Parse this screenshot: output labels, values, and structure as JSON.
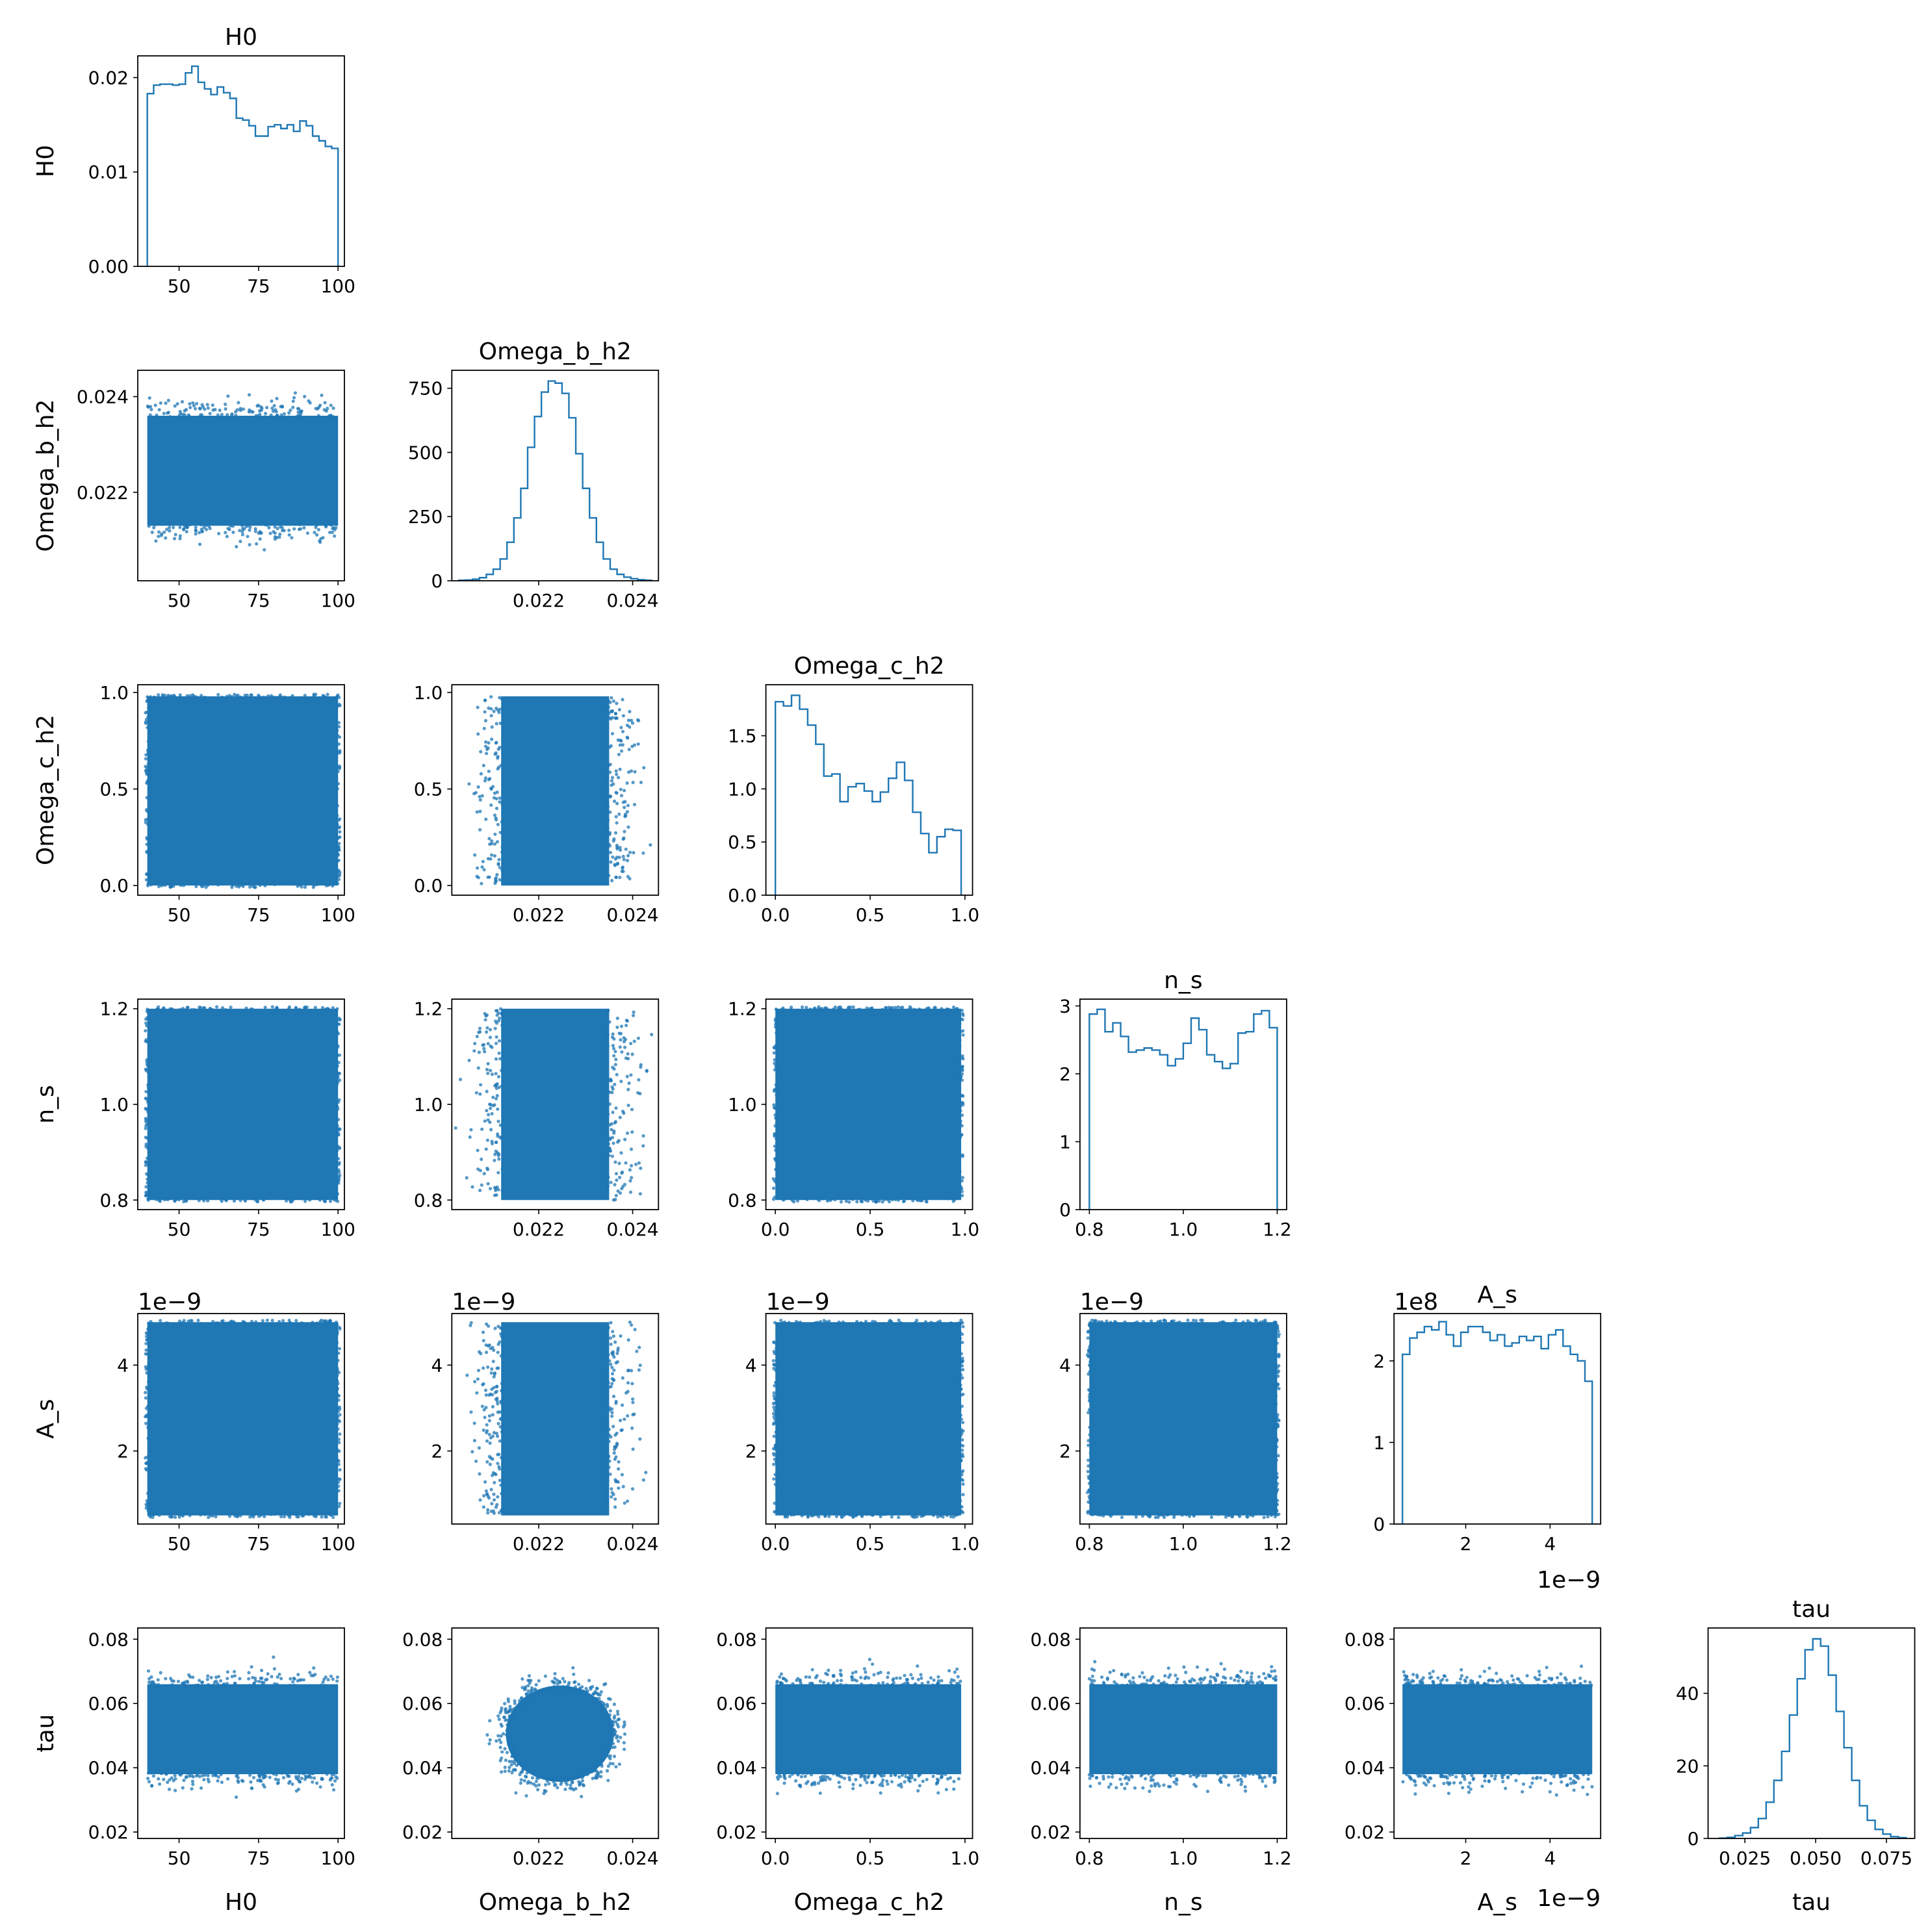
{
  "chart_data": {
    "type": "corner",
    "params": [
      "H0",
      "Omega_b_h2",
      "Omega_c_h2",
      "n_s",
      "A_s",
      "tau"
    ],
    "axes": {
      "H0": {
        "lim": [
          37,
          102
        ],
        "ticks": [
          50,
          75,
          100
        ],
        "labels": [
          "50",
          "75",
          "100"
        ],
        "offset": ""
      },
      "Omega_b_h2": {
        "lim": [
          0.02015,
          0.02455
        ],
        "ticks": [
          0.022,
          0.024
        ],
        "labels": [
          "0.022",
          "0.024"
        ],
        "offset": ""
      },
      "Omega_c_h2": {
        "lim": [
          -0.05,
          1.04
        ],
        "ticks": [
          0.0,
          0.5,
          1.0
        ],
        "labels": [
          "0.0",
          "0.5",
          "1.0"
        ],
        "offset": ""
      },
      "n_s": {
        "lim": [
          0.78,
          1.22
        ],
        "ticks": [
          0.8,
          1.0,
          1.2
        ],
        "labels": [
          "0.8",
          "1.0",
          "1.2"
        ],
        "offset": ""
      },
      "A_s": {
        "lim": [
          0.3,
          5.2
        ],
        "ticks": [
          2,
          4
        ],
        "labels": [
          "2",
          "4"
        ],
        "offset": "1e−9"
      },
      "tau": {
        "lim": [
          0.018,
          0.0835
        ],
        "ticks": [
          0.02,
          0.04,
          0.06,
          0.08
        ],
        "labels": [
          "0.02",
          "0.04",
          "0.06",
          "0.08"
        ],
        "offset": ""
      }
    },
    "tau_hist_axis": {
      "lim": [
        0.012,
        0.085
      ],
      "ticks": [
        0.025,
        0.05,
        0.075
      ],
      "labels": [
        "0.025",
        "0.050",
        "0.075"
      ]
    },
    "histograms": [
      {
        "param": "H0",
        "title": "H0",
        "ylim": [
          0,
          0.0223
        ],
        "yticks": [
          0.0,
          0.01,
          0.02
        ],
        "ylabels": [
          "0.00",
          "0.01",
          "0.02"
        ],
        "offset": "",
        "edges": [
          40,
          100
        ],
        "values": [
          0.0183,
          0.0192,
          0.0193,
          0.0193,
          0.0192,
          0.0193,
          0.0205,
          0.0212,
          0.0195,
          0.0188,
          0.0182,
          0.019,
          0.0184,
          0.0178,
          0.0157,
          0.0155,
          0.0149,
          0.0138,
          0.0138,
          0.0148,
          0.015,
          0.0146,
          0.015,
          0.0143,
          0.0154,
          0.0149,
          0.0138,
          0.0133,
          0.0127,
          0.0125
        ]
      },
      {
        "param": "Omega_b_h2",
        "title": "Omega_b_h2",
        "ylim": [
          0,
          820
        ],
        "yticks": [
          0,
          250,
          500,
          750
        ],
        "ylabels": [
          "0",
          "250",
          "500",
          "750"
        ],
        "offset": "",
        "edges": [
          0.0203,
          0.0244
        ],
        "values": [
          2,
          3,
          6,
          12,
          25,
          45,
          85,
          150,
          245,
          360,
          520,
          640,
          735,
          778,
          770,
          730,
          635,
          495,
          360,
          245,
          150,
          85,
          45,
          25,
          14,
          8,
          4,
          2
        ]
      },
      {
        "param": "Omega_c_h2",
        "title": "Omega_c_h2",
        "ylim": [
          0,
          1.98
        ],
        "yticks": [
          0.0,
          0.5,
          1.0,
          1.5
        ],
        "ylabels": [
          "0.0",
          "0.5",
          "1.0",
          "1.5"
        ],
        "offset": "",
        "edges": [
          0.0,
          0.98
        ],
        "values": [
          1.82,
          1.78,
          1.88,
          1.75,
          1.6,
          1.42,
          1.12,
          1.14,
          0.88,
          1.02,
          1.05,
          0.98,
          0.88,
          0.97,
          1.1,
          1.25,
          1.08,
          0.78,
          0.58,
          0.4,
          0.55,
          0.62,
          0.61
        ]
      },
      {
        "param": "n_s",
        "title": "n_s",
        "ylim": [
          0,
          3.1
        ],
        "yticks": [
          0,
          1,
          2,
          3
        ],
        "ylabels": [
          "0",
          "1",
          "2",
          "3"
        ],
        "offset": "",
        "edges": [
          0.8,
          1.2
        ],
        "values": [
          2.88,
          2.95,
          2.62,
          2.75,
          2.55,
          2.32,
          2.35,
          2.38,
          2.35,
          2.28,
          2.12,
          2.22,
          2.45,
          2.82,
          2.65,
          2.28,
          2.18,
          2.08,
          2.15,
          2.6,
          2.62,
          2.88,
          2.93,
          2.68
        ]
      },
      {
        "param": "A_s",
        "title": "A_s",
        "ylim": [
          0,
          2.58
        ],
        "yticks": [
          0,
          1,
          2
        ],
        "ylabels": [
          "0",
          "1",
          "2"
        ],
        "offset": "1e8",
        "edges": [
          0.5,
          5.0
        ],
        "values": [
          2.08,
          2.28,
          2.35,
          2.42,
          2.38,
          2.48,
          2.32,
          2.18,
          2.35,
          2.42,
          2.42,
          2.35,
          2.25,
          2.32,
          2.18,
          2.22,
          2.3,
          2.25,
          2.3,
          2.15,
          2.32,
          2.38,
          2.18,
          2.08,
          2.0,
          1.75
        ]
      },
      {
        "param": "tau",
        "title": "tau",
        "ylim": [
          0,
          58
        ],
        "yticks": [
          0,
          20,
          40
        ],
        "ylabels": [
          "0",
          "20",
          "40"
        ],
        "offset": "",
        "edges": [
          0.016,
          0.082
        ],
        "values": [
          0.1,
          0.3,
          0.8,
          1.5,
          3,
          5.5,
          10,
          16,
          24,
          34,
          44,
          52,
          55,
          53,
          45,
          35,
          25,
          16,
          9,
          5,
          2.5,
          1.2,
          0.5,
          0.2
        ]
      }
    ],
    "scatter_panels": [
      {
        "x": "H0",
        "y": "Omega_b_h2",
        "shape": "box",
        "bulk": [
          40,
          100,
          0.0213,
          0.0236
        ],
        "tails": "y"
      },
      {
        "x": "H0",
        "y": "Omega_c_h2",
        "shape": "box",
        "bulk": [
          40,
          100,
          0.0,
          0.98
        ],
        "tails": "none"
      },
      {
        "x": "Omega_b_h2",
        "y": "Omega_c_h2",
        "shape": "box",
        "bulk": [
          0.0212,
          0.0235,
          0.0,
          0.98
        ],
        "tails": "x"
      },
      {
        "x": "H0",
        "y": "n_s",
        "shape": "box",
        "bulk": [
          40,
          100,
          0.8,
          1.2
        ],
        "tails": "none"
      },
      {
        "x": "Omega_b_h2",
        "y": "n_s",
        "shape": "box",
        "bulk": [
          0.0212,
          0.0235,
          0.8,
          1.2
        ],
        "tails": "x"
      },
      {
        "x": "Omega_c_h2",
        "y": "n_s",
        "shape": "box",
        "bulk": [
          0.0,
          0.98,
          0.8,
          1.2
        ],
        "tails": "none"
      },
      {
        "x": "H0",
        "y": "A_s",
        "shape": "box",
        "bulk": [
          40,
          100,
          0.5,
          5.0
        ],
        "tails": "none"
      },
      {
        "x": "Omega_b_h2",
        "y": "A_s",
        "shape": "box",
        "bulk": [
          0.0212,
          0.0235,
          0.5,
          5.0
        ],
        "tails": "x"
      },
      {
        "x": "Omega_c_h2",
        "y": "A_s",
        "shape": "box",
        "bulk": [
          0.0,
          0.98,
          0.5,
          5.0
        ],
        "tails": "none"
      },
      {
        "x": "n_s",
        "y": "A_s",
        "shape": "box",
        "bulk": [
          0.8,
          1.2,
          0.5,
          5.0
        ],
        "tails": "none"
      },
      {
        "x": "H0",
        "y": "tau",
        "shape": "box",
        "bulk": [
          40,
          100,
          0.038,
          0.066
        ],
        "tails": "y"
      },
      {
        "x": "Omega_b_h2",
        "y": "tau",
        "shape": "ellipse",
        "bulk": [
          0.02245,
          0.0506,
          0.00115,
          0.015
        ],
        "tails": "both"
      },
      {
        "x": "Omega_c_h2",
        "y": "tau",
        "shape": "box",
        "bulk": [
          0.0,
          0.98,
          0.038,
          0.066
        ],
        "tails": "y"
      },
      {
        "x": "n_s",
        "y": "tau",
        "shape": "box",
        "bulk": [
          0.8,
          1.2,
          0.038,
          0.066
        ],
        "tails": "y"
      },
      {
        "x": "A_s",
        "y": "tau",
        "shape": "box",
        "bulk": [
          0.5,
          5.0,
          0.038,
          0.066
        ],
        "tails": "y"
      }
    ],
    "xlabels": [
      "H0",
      "Omega_b_h2",
      "Omega_c_h2",
      "n_s",
      "A_s",
      "tau"
    ],
    "ylabels": [
      "H0",
      "Omega_b_h2",
      "Omega_c_h2",
      "n_s",
      "A_s",
      "tau"
    ],
    "bottom_offsets": [
      "",
      "",
      "",
      "",
      "1e−9",
      ""
    ],
    "grid": false,
    "legend": "none",
    "color": "#1f77b4"
  }
}
